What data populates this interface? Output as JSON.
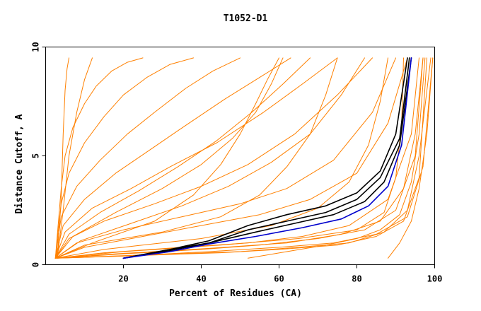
{
  "chart_data": {
    "type": "line",
    "title": "T1052-D1",
    "xlabel": "Percent of Residues (CA)",
    "ylabel": "Distance Cutoff, A",
    "xlim": [
      0,
      100
    ],
    "ylim": [
      0,
      10
    ],
    "x_ticks": [
      "20",
      "40",
      "60",
      "80",
      "100"
    ],
    "y_ticks": [
      "0",
      "5",
      "10"
    ],
    "grid": false,
    "legend": "none",
    "colors": {
      "models": "#ff8000",
      "black_models": "#000000",
      "blue_model": "#0000cc"
    },
    "series": [
      {
        "color": "#ff8000",
        "x": [
          2.5,
          20,
          45,
          60,
          75,
          85,
          92,
          96,
          98
        ],
        "y": [
          0.3,
          0.4,
          0.55,
          0.7,
          0.9,
          1.3,
          2.0,
          4.0,
          9.5
        ]
      },
      {
        "color": "#ff8000",
        "x": [
          2.5,
          25,
          50,
          65,
          78,
          87,
          93,
          96,
          99
        ],
        "y": [
          0.3,
          0.45,
          0.6,
          0.8,
          1.0,
          1.5,
          2.5,
          5.0,
          9.5
        ]
      },
      {
        "color": "#ff8000",
        "x": [
          3,
          20,
          40,
          55,
          70,
          82,
          90,
          95,
          97
        ],
        "y": [
          0.3,
          0.5,
          0.7,
          0.9,
          1.2,
          1.6,
          2.5,
          5.0,
          9.5
        ]
      },
      {
        "color": "#ff8000",
        "x": [
          3,
          15,
          35,
          52,
          66,
          78,
          88,
          94,
          96
        ],
        "y": [
          0.3,
          0.55,
          0.8,
          1.0,
          1.3,
          1.8,
          3.0,
          6.0,
          9.5
        ]
      },
      {
        "color": "#ff8000",
        "x": [
          3,
          20,
          42,
          60,
          74,
          85,
          93,
          97,
          99.5
        ],
        "y": [
          0.3,
          0.4,
          0.6,
          0.8,
          1.0,
          1.4,
          2.2,
          4.5,
          9.5
        ]
      },
      {
        "color": "#ff8000",
        "x": [
          2.5,
          10,
          25,
          40,
          55,
          68,
          80,
          88,
          93
        ],
        "y": [
          0.3,
          0.8,
          1.3,
          1.8,
          2.3,
          3.0,
          4.2,
          6.5,
          9.5
        ]
      },
      {
        "color": "#ff8000",
        "x": [
          2.5,
          8,
          20,
          35,
          50,
          62,
          74,
          84,
          90
        ],
        "y": [
          0.3,
          1.0,
          1.6,
          2.2,
          2.8,
          3.5,
          4.8,
          7.0,
          9.5
        ]
      },
      {
        "color": "#ff8000",
        "x": [
          2.5,
          6,
          15,
          28,
          40,
          52,
          64,
          75,
          84
        ],
        "y": [
          0.3,
          1.2,
          2.0,
          2.8,
          3.6,
          4.6,
          6.0,
          7.8,
          9.5
        ]
      },
      {
        "color": "#ff8000",
        "x": [
          2.5,
          5,
          12,
          22,
          32,
          44,
          56,
          66,
          75
        ],
        "y": [
          0.3,
          1.5,
          2.6,
          3.5,
          4.5,
          5.6,
          7.0,
          8.3,
          9.5
        ]
      },
      {
        "color": "#ff8000",
        "x": [
          2.5,
          4.5,
          10,
          18,
          27,
          36,
          46,
          55,
          63
        ],
        "y": [
          0.3,
          1.8,
          3.0,
          4.2,
          5.3,
          6.4,
          7.6,
          8.6,
          9.5
        ]
      },
      {
        "color": "#ff8000",
        "x": [
          2.5,
          4,
          8,
          14,
          21,
          28,
          36,
          43,
          50
        ],
        "y": [
          0.3,
          2.2,
          3.6,
          4.8,
          6.0,
          7.0,
          8.1,
          8.9,
          9.5
        ]
      },
      {
        "color": "#ff8000",
        "x": [
          2.5,
          4,
          6,
          10,
          15,
          20,
          26,
          32,
          38
        ],
        "y": [
          0.3,
          2.8,
          4.2,
          5.6,
          6.8,
          7.8,
          8.6,
          9.2,
          9.5
        ]
      },
      {
        "color": "#ff8000",
        "x": [
          2.5,
          4,
          5,
          7,
          10,
          13,
          17,
          21,
          25
        ],
        "y": [
          0.3,
          3.5,
          5.0,
          6.3,
          7.4,
          8.2,
          8.9,
          9.3,
          9.5
        ]
      },
      {
        "color": "#ff8000",
        "x": [
          3,
          4,
          4.5,
          5,
          5.5,
          6
        ],
        "y": [
          0.3,
          3.0,
          6.0,
          8.0,
          9.0,
          9.5
        ]
      },
      {
        "color": "#ff8000",
        "x": [
          3,
          4.5,
          6,
          8,
          10,
          12
        ],
        "y": [
          0.3,
          2.5,
          5.0,
          7.0,
          8.5,
          9.5
        ]
      },
      {
        "color": "#ff8000",
        "x": [
          2.5,
          10,
          30,
          45,
          55,
          62,
          68,
          72,
          75
        ],
        "y": [
          0.3,
          0.9,
          1.5,
          2.2,
          3.2,
          4.5,
          6.0,
          7.8,
          9.5
        ]
      },
      {
        "color": "#ff8000",
        "x": [
          2.5,
          12,
          28,
          38,
          45,
          50,
          54,
          57,
          60
        ],
        "y": [
          0.3,
          1.0,
          2.0,
          3.2,
          4.6,
          6.0,
          7.4,
          8.5,
          9.5
        ]
      },
      {
        "color": "#ff8000",
        "x": [
          2.5,
          15,
          40,
          58,
          70,
          78,
          83,
          86,
          88
        ],
        "y": [
          0.3,
          0.7,
          1.2,
          1.8,
          2.6,
          3.8,
          5.5,
          7.5,
          9.5
        ]
      },
      {
        "color": "#ff8000",
        "x": [
          2.5,
          18,
          42,
          62,
          76,
          86,
          92,
          95,
          97
        ],
        "y": [
          0.3,
          0.5,
          0.75,
          1.0,
          1.4,
          2.0,
          3.5,
          6.0,
          9.5
        ]
      },
      {
        "color": "#ff8000",
        "x": [
          52,
          62,
          72,
          80,
          86,
          91,
          94,
          96,
          97.5
        ],
        "y": [
          0.3,
          0.6,
          0.9,
          1.2,
          1.6,
          2.3,
          3.8,
          6.0,
          9.5
        ]
      },
      {
        "color": "#ff8000",
        "x": [
          2.5,
          20,
          45,
          65,
          80,
          87,
          90,
          91.5,
          92
        ],
        "y": [
          0.3,
          0.6,
          0.9,
          1.2,
          1.6,
          2.4,
          4.0,
          6.5,
          9.5
        ]
      },
      {
        "color": "#ff8000",
        "x": [
          2.5,
          7,
          18,
          30,
          40,
          48,
          54,
          58,
          61
        ],
        "y": [
          0.3,
          1.3,
          2.4,
          3.5,
          4.6,
          5.8,
          7.0,
          8.3,
          9.5
        ]
      },
      {
        "color": "#ff8000",
        "x": [
          2.5,
          9,
          22,
          35,
          47,
          58,
          68,
          76,
          82
        ],
        "y": [
          0.3,
          1.1,
          1.9,
          2.7,
          3.6,
          4.7,
          6.0,
          7.8,
          9.5
        ]
      },
      {
        "color": "#ff8000",
        "x": [
          2.5,
          6,
          14,
          24,
          34,
          44,
          53,
          61,
          68
        ],
        "y": [
          0.3,
          1.4,
          2.4,
          3.4,
          4.5,
          5.7,
          7.0,
          8.3,
          9.5
        ]
      },
      {
        "color": "#ff8000",
        "x": [
          88,
          91,
          94,
          96,
          98,
          99.5
        ],
        "y": [
          0.3,
          1.0,
          2.0,
          3.5,
          6.0,
          9.5
        ]
      },
      {
        "color": "#000000",
        "x": [
          20,
          32,
          42,
          52,
          62,
          72,
          80,
          86,
          90,
          93
        ],
        "y": [
          0.3,
          0.7,
          1.1,
          1.8,
          2.3,
          2.7,
          3.3,
          4.3,
          6.0,
          9.5
        ]
      },
      {
        "color": "#000000",
        "x": [
          20,
          32,
          42,
          52,
          62,
          72,
          80,
          86,
          91,
          93.5
        ],
        "y": [
          0.3,
          0.7,
          1.0,
          1.6,
          2.0,
          2.4,
          3.0,
          4.0,
          5.8,
          9.5
        ]
      },
      {
        "color": "#000000",
        "x": [
          20,
          32,
          42,
          54,
          64,
          74,
          82,
          87,
          91,
          94
        ],
        "y": [
          0.3,
          0.65,
          1.0,
          1.5,
          1.9,
          2.3,
          2.9,
          3.8,
          5.5,
          9.5
        ]
      },
      {
        "color": "#0000cc",
        "x": [
          20,
          32,
          42,
          54,
          66,
          76,
          83,
          88,
          91.5,
          94
        ],
        "y": [
          0.3,
          0.6,
          0.95,
          1.3,
          1.7,
          2.1,
          2.7,
          3.6,
          5.5,
          9.5
        ]
      }
    ]
  }
}
